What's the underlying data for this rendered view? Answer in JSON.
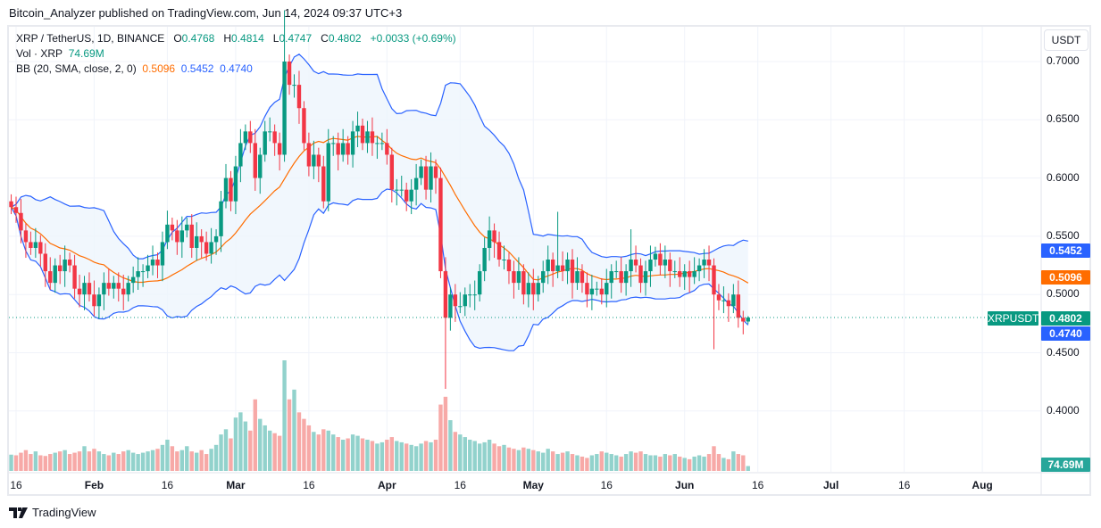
{
  "publisher_line": "Bitcoin_Analyzer published on TradingView.com, Jun 14, 2024 09:37 UTC+3",
  "legend": {
    "symbol": "XRP / TetherUS, 1D, BINANCE",
    "open_label": "O",
    "open": "0.4768",
    "high_label": "H",
    "high": "0.4814",
    "low_label": "L",
    "low": "0.4747",
    "close_label": "C",
    "close": "0.4802",
    "change": "+0.0033 (+0.69%)",
    "vol_label": "Vol · XRP",
    "vol_value": "74.69M",
    "bb_label": "BB (20, SMA, close, 2, 0)",
    "bb_basis": "0.5096",
    "bb_upper": "0.5452",
    "bb_lower": "0.4740"
  },
  "currency_button": "USDT",
  "badges": {
    "symbol": "XRPUSDT",
    "close": "0.4802",
    "bb_upper": "0.5452",
    "bb_basis": "0.5096",
    "bb_lower": "0.4740",
    "volume": "74.69M"
  },
  "colors": {
    "up": "#089981",
    "down": "#f23645",
    "vol_up": "#92d2cc",
    "vol_down": "#f7a9a7",
    "bb_band": "#2962ff",
    "bb_basis": "#ff6d00",
    "bb_fill": "#eef5fc"
  },
  "footer_logo": "TradingView",
  "chart_data": {
    "type": "candlestick",
    "symbol": "XRPUSDT",
    "interval": "1D",
    "start_date": "2024-01-15",
    "ylim": [
      0.38,
      0.72
    ],
    "y_ticks": [
      "0.7000",
      "0.6500",
      "0.6000",
      "0.5500",
      "0.5000",
      "0.4500",
      "0.4000"
    ],
    "x_ticks": [
      {
        "label": "16",
        "date": "2024-01-16"
      },
      {
        "label": "Feb",
        "date": "2024-02-01"
      },
      {
        "label": "16",
        "date": "2024-02-16"
      },
      {
        "label": "Mar",
        "date": "2024-03-01"
      },
      {
        "label": "16",
        "date": "2024-03-16"
      },
      {
        "label": "Apr",
        "date": "2024-04-01"
      },
      {
        "label": "16",
        "date": "2024-04-16"
      },
      {
        "label": "May",
        "date": "2024-05-01"
      },
      {
        "label": "16",
        "date": "2024-05-16"
      },
      {
        "label": "Jun",
        "date": "2024-06-01"
      },
      {
        "label": "16",
        "date": "2024-06-16"
      },
      {
        "label": "Jul",
        "date": "2024-07-01"
      },
      {
        "label": "16",
        "date": "2024-07-16"
      },
      {
        "label": "Aug",
        "date": "2024-08-01"
      }
    ],
    "close": [
      0.575,
      0.57,
      0.555,
      0.545,
      0.54,
      0.545,
      0.535,
      0.52,
      0.51,
      0.525,
      0.52,
      0.53,
      0.525,
      0.505,
      0.5,
      0.51,
      0.5,
      0.49,
      0.5,
      0.51,
      0.505,
      0.51,
      0.505,
      0.5,
      0.51,
      0.515,
      0.52,
      0.52,
      0.525,
      0.53,
      0.525,
      0.545,
      0.56,
      0.555,
      0.545,
      0.555,
      0.56,
      0.54,
      0.55,
      0.545,
      0.535,
      0.545,
      0.55,
      0.58,
      0.6,
      0.58,
      0.61,
      0.63,
      0.64,
      0.63,
      0.6,
      0.62,
      0.64,
      0.64,
      0.63,
      0.62,
      0.7,
      0.68,
      0.68,
      0.66,
      0.63,
      0.61,
      0.62,
      0.61,
      0.58,
      0.63,
      0.63,
      0.62,
      0.63,
      0.62,
      0.64,
      0.645,
      0.63,
      0.64,
      0.63,
      0.63,
      0.63,
      0.62,
      0.59,
      0.59,
      0.59,
      0.58,
      0.59,
      0.6,
      0.61,
      0.59,
      0.61,
      0.6,
      0.52,
      0.48,
      0.5,
      0.49,
      0.49,
      0.5,
      0.5,
      0.5,
      0.52,
      0.54,
      0.555,
      0.545,
      0.53,
      0.53,
      0.52,
      0.51,
      0.52,
      0.5,
      0.51,
      0.5,
      0.51,
      0.52,
      0.53,
      0.52,
      0.525,
      0.52,
      0.53,
      0.51,
      0.52,
      0.51,
      0.5,
      0.505,
      0.505,
      0.5,
      0.51,
      0.52,
      0.52,
      0.51,
      0.52,
      0.53,
      0.525,
      0.51,
      0.52,
      0.53,
      0.535,
      0.525,
      0.53,
      0.52,
      0.52,
      0.515,
      0.52,
      0.515,
      0.52,
      0.525,
      0.53,
      0.525,
      0.5,
      0.495,
      0.495,
      0.49,
      0.5,
      0.48,
      0.4768,
      0.4802
    ],
    "volume_millions": [
      250,
      240,
      280,
      320,
      260,
      300,
      240,
      230,
      260,
      280,
      300,
      320,
      260,
      280,
      300,
      380,
      300,
      340,
      300,
      260,
      240,
      280,
      260,
      300,
      320,
      280,
      260,
      280,
      300,
      320,
      340,
      400,
      480,
      380,
      300,
      320,
      380,
      300,
      280,
      320,
      260,
      340,
      400,
      560,
      640,
      500,
      820,
      900,
      760,
      620,
      1100,
      800,
      700,
      620,
      580,
      540,
      1700,
      1100,
      1250,
      900,
      800,
      700,
      600,
      560,
      640,
      620,
      560,
      520,
      480,
      500,
      560,
      540,
      500,
      480,
      460,
      420,
      440,
      480,
      520,
      460,
      440,
      420,
      400,
      380,
      420,
      460,
      440,
      480,
      1020,
      1140,
      780,
      600,
      560,
      520,
      480,
      460,
      420,
      440,
      480,
      420,
      380,
      400,
      360,
      340,
      320,
      360,
      340,
      320,
      300,
      280,
      340,
      300,
      260,
      280,
      300,
      260,
      240,
      220,
      200,
      240,
      260,
      300,
      280,
      260,
      240,
      220,
      260,
      300,
      280,
      300,
      260,
      240,
      240,
      220,
      260,
      240,
      260,
      220,
      200,
      180,
      220,
      240,
      220,
      260,
      380,
      260,
      200,
      180,
      300,
      260,
      240,
      74.69
    ],
    "extremes": [
      {
        "date": "2024-03-11",
        "high": 0.744
      },
      {
        "date": "2024-04-13",
        "low": 0.419
      },
      {
        "date": "2024-06-07",
        "low": 0.453
      },
      {
        "date": "2024-05-06",
        "high": 0.571
      },
      {
        "date": "2024-05-21",
        "high": 0.556
      }
    ],
    "last_candle": {
      "open": 0.4768,
      "high": 0.4814,
      "low": 0.4747,
      "close": 0.4802
    },
    "indicator": {
      "name": "BB",
      "length": 20,
      "mult": 2
    }
  }
}
